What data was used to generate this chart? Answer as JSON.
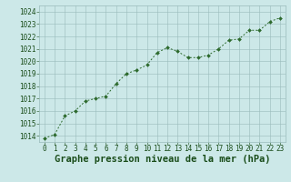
{
  "x": [
    0,
    1,
    2,
    3,
    4,
    5,
    6,
    7,
    8,
    9,
    10,
    11,
    12,
    13,
    14,
    15,
    16,
    17,
    18,
    19,
    20,
    21,
    22,
    23
  ],
  "y": [
    1013.8,
    1014.1,
    1015.6,
    1016.0,
    1016.8,
    1017.0,
    1017.2,
    1018.2,
    1019.0,
    1019.3,
    1019.7,
    1020.7,
    1021.1,
    1020.8,
    1020.3,
    1020.3,
    1020.5,
    1021.0,
    1021.7,
    1021.8,
    1022.5,
    1022.5,
    1023.2,
    1023.5
  ],
  "ylim": [
    1013.5,
    1024.5
  ],
  "yticks": [
    1014,
    1015,
    1016,
    1017,
    1018,
    1019,
    1020,
    1021,
    1022,
    1023,
    1024
  ],
  "xticks": [
    0,
    1,
    2,
    3,
    4,
    5,
    6,
    7,
    8,
    9,
    10,
    11,
    12,
    13,
    14,
    15,
    16,
    17,
    18,
    19,
    20,
    21,
    22,
    23
  ],
  "xlabel": "Graphe pression niveau de la mer (hPa)",
  "line_color": "#2d6a2d",
  "marker": "D",
  "marker_size": 2.0,
  "bg_color": "#cce8e8",
  "grid_color": "#99bbbb",
  "tick_color": "#1a4d1a",
  "label_color": "#1a4d1a",
  "tick_fontsize": 5.5,
  "xlabel_fontsize": 7.5
}
